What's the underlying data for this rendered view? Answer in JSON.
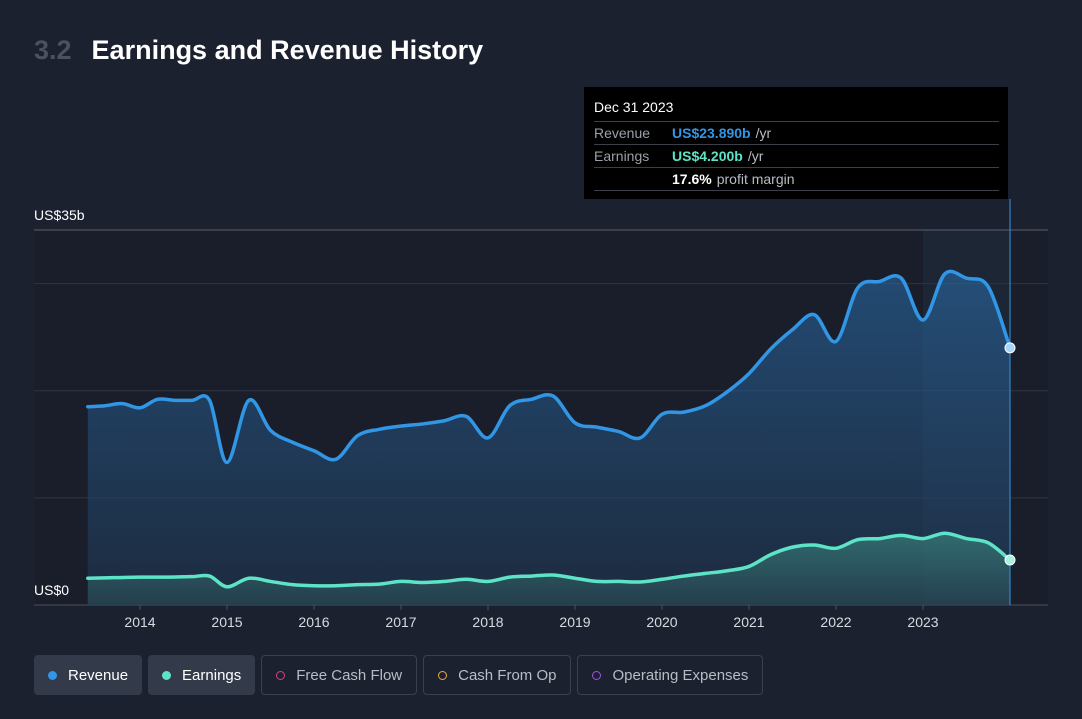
{
  "header": {
    "section_number": "3.2",
    "title": "Earnings and Revenue History"
  },
  "tooltip": {
    "date": "Dec 31 2023",
    "rows": [
      {
        "label": "Revenue",
        "value": "US$23.890b",
        "unit": "/yr",
        "color": "#3296e6"
      },
      {
        "label": "Earnings",
        "value": "US$4.200b",
        "unit": "/yr",
        "color": "#5de4c7"
      },
      {
        "label": "",
        "value": "17.6%",
        "unit": "profit margin",
        "color": "#ffffff"
      }
    ]
  },
  "legend": [
    {
      "label": "Revenue",
      "active": true,
      "color": "#3296e6"
    },
    {
      "label": "Earnings",
      "active": true,
      "color": "#5de4c7"
    },
    {
      "label": "Free Cash Flow",
      "active": false,
      "color": "#d0408a"
    },
    {
      "label": "Cash From Op",
      "active": false,
      "color": "#e8a84a"
    },
    {
      "label": "Operating Expenses",
      "active": false,
      "color": "#9b55e0"
    }
  ],
  "chart_data": {
    "type": "area",
    "title": "Earnings and Revenue History",
    "y_top_label": "US$35b",
    "y_bottom_label": "US$0",
    "ylim": [
      0,
      35
    ],
    "x_ticks": [
      "2014",
      "2015",
      "2016",
      "2017",
      "2018",
      "2019",
      "2020",
      "2021",
      "2022",
      "2023"
    ],
    "xlim": [
      2013.25,
      2024.4
    ],
    "highlight_x": 2024.0,
    "series": [
      {
        "name": "Revenue",
        "color": "#3296e6",
        "points": [
          [
            2013.4,
            18.5
          ],
          [
            2013.6,
            18.6
          ],
          [
            2013.8,
            18.8
          ],
          [
            2014.0,
            18.4
          ],
          [
            2014.2,
            19.2
          ],
          [
            2014.4,
            19.1
          ],
          [
            2014.6,
            19.1
          ],
          [
            2014.8,
            19.1
          ],
          [
            2015.0,
            13.3
          ],
          [
            2015.25,
            19.1
          ],
          [
            2015.5,
            16.3
          ],
          [
            2015.75,
            15.2
          ],
          [
            2016.0,
            14.4
          ],
          [
            2016.25,
            13.6
          ],
          [
            2016.5,
            15.8
          ],
          [
            2016.75,
            16.4
          ],
          [
            2017.0,
            16.7
          ],
          [
            2017.25,
            16.9
          ],
          [
            2017.5,
            17.2
          ],
          [
            2017.75,
            17.6
          ],
          [
            2018.0,
            15.6
          ],
          [
            2018.25,
            18.6
          ],
          [
            2018.5,
            19.2
          ],
          [
            2018.75,
            19.5
          ],
          [
            2019.0,
            17.0
          ],
          [
            2019.25,
            16.6
          ],
          [
            2019.5,
            16.2
          ],
          [
            2019.75,
            15.6
          ],
          [
            2020.0,
            17.8
          ],
          [
            2020.25,
            18.0
          ],
          [
            2020.5,
            18.6
          ],
          [
            2020.75,
            19.9
          ],
          [
            2021.0,
            21.6
          ],
          [
            2021.25,
            23.9
          ],
          [
            2021.5,
            25.7
          ],
          [
            2021.75,
            27.1
          ],
          [
            2022.0,
            24.6
          ],
          [
            2022.25,
            29.6
          ],
          [
            2022.5,
            30.2
          ],
          [
            2022.75,
            30.5
          ],
          [
            2023.0,
            26.6
          ],
          [
            2023.25,
            30.9
          ],
          [
            2023.5,
            30.5
          ],
          [
            2023.75,
            29.7
          ],
          [
            2024.0,
            24.0
          ]
        ]
      },
      {
        "name": "Earnings",
        "color": "#5de4c7",
        "points": [
          [
            2013.4,
            2.5
          ],
          [
            2013.7,
            2.55
          ],
          [
            2014.0,
            2.6
          ],
          [
            2014.3,
            2.6
          ],
          [
            2014.6,
            2.65
          ],
          [
            2014.8,
            2.7
          ],
          [
            2015.0,
            1.7
          ],
          [
            2015.25,
            2.5
          ],
          [
            2015.5,
            2.2
          ],
          [
            2015.75,
            1.9
          ],
          [
            2016.0,
            1.8
          ],
          [
            2016.25,
            1.8
          ],
          [
            2016.5,
            1.9
          ],
          [
            2016.75,
            1.95
          ],
          [
            2017.0,
            2.2
          ],
          [
            2017.25,
            2.1
          ],
          [
            2017.5,
            2.2
          ],
          [
            2017.75,
            2.4
          ],
          [
            2018.0,
            2.2
          ],
          [
            2018.25,
            2.6
          ],
          [
            2018.5,
            2.7
          ],
          [
            2018.75,
            2.8
          ],
          [
            2019.0,
            2.5
          ],
          [
            2019.25,
            2.2
          ],
          [
            2019.5,
            2.2
          ],
          [
            2019.75,
            2.15
          ],
          [
            2020.0,
            2.4
          ],
          [
            2020.25,
            2.7
          ],
          [
            2020.5,
            2.95
          ],
          [
            2020.75,
            3.2
          ],
          [
            2021.0,
            3.6
          ],
          [
            2021.25,
            4.7
          ],
          [
            2021.5,
            5.4
          ],
          [
            2021.75,
            5.6
          ],
          [
            2022.0,
            5.3
          ],
          [
            2022.25,
            6.1
          ],
          [
            2022.5,
            6.2
          ],
          [
            2022.75,
            6.5
          ],
          [
            2023.0,
            6.2
          ],
          [
            2023.25,
            6.7
          ],
          [
            2023.5,
            6.2
          ],
          [
            2023.75,
            5.8
          ],
          [
            2024.0,
            4.2
          ]
        ]
      }
    ],
    "legend_position": "bottom-left",
    "grid": true
  }
}
